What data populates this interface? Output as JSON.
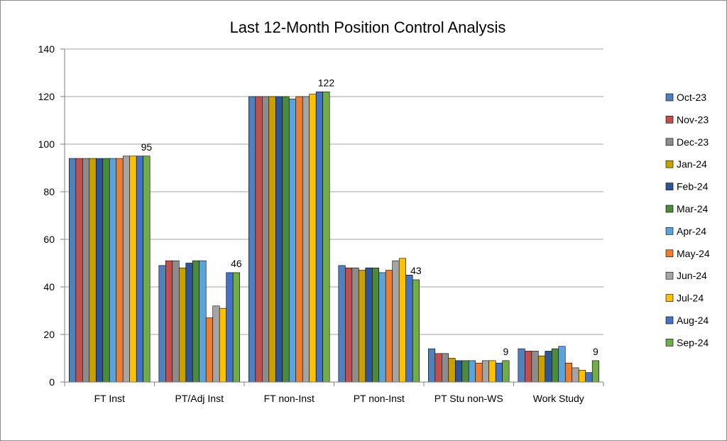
{
  "chart_data": {
    "type": "bar",
    "title": "Last 12-Month Position Control Analysis",
    "xlabel": "",
    "ylabel": "",
    "ylim": [
      0,
      140
    ],
    "yticks": [
      0,
      20,
      40,
      60,
      80,
      100,
      120,
      140
    ],
    "grid": true,
    "legend_position": "right",
    "categories": [
      "FT Inst",
      "PT/Adj Inst",
      "FT non-Inst",
      "PT non-Inst",
      "PT Stu non-WS",
      "Work Study"
    ],
    "series": [
      {
        "name": "Oct-23",
        "color": "#4f81bd",
        "values": [
          94,
          49,
          120,
          49,
          14,
          14
        ]
      },
      {
        "name": "Nov-23",
        "color": "#c0504d",
        "values": [
          94,
          51,
          120,
          48,
          12,
          13
        ]
      },
      {
        "name": "Dec-23",
        "color": "#8c8c8c",
        "values": [
          94,
          51,
          120,
          48,
          12,
          13
        ]
      },
      {
        "name": "Jan-24",
        "color": "#c9a000",
        "values": [
          94,
          48,
          120,
          47,
          10,
          11
        ]
      },
      {
        "name": "Feb-24",
        "color": "#2e5597",
        "values": [
          94,
          50,
          120,
          48,
          9,
          13
        ]
      },
      {
        "name": "Mar-24",
        "color": "#4e8a3c",
        "values": [
          94,
          51,
          120,
          48,
          9,
          14
        ]
      },
      {
        "name": "Apr-24",
        "color": "#5ba3dc",
        "values": [
          94,
          51,
          119,
          46,
          9,
          15
        ]
      },
      {
        "name": "May-24",
        "color": "#ed7d31",
        "values": [
          94,
          27,
          120,
          47,
          8,
          8
        ]
      },
      {
        "name": "Jun-24",
        "color": "#a5a5a5",
        "values": [
          95,
          32,
          120,
          51,
          9,
          6
        ]
      },
      {
        "name": "Jul-24",
        "color": "#ffc000",
        "values": [
          95,
          31,
          121,
          52,
          9,
          5
        ]
      },
      {
        "name": "Aug-24",
        "color": "#4472c4",
        "values": [
          95,
          46,
          122,
          45,
          8,
          4
        ]
      },
      {
        "name": "Sep-24",
        "color": "#70ad47",
        "values": [
          95,
          46,
          122,
          43,
          9,
          9
        ]
      }
    ],
    "data_labels": [
      {
        "category": "FT Inst",
        "series": "Sep-24",
        "text": "95"
      },
      {
        "category": "PT/Adj Inst",
        "series": "Sep-24",
        "text": "46"
      },
      {
        "category": "FT non-Inst",
        "series": "Sep-24",
        "text": "122"
      },
      {
        "category": "PT non-Inst",
        "series": "Sep-24",
        "text": "43"
      },
      {
        "category": "PT Stu non-WS",
        "series": "Sep-24",
        "text": "9"
      },
      {
        "category": "Work Study",
        "series": "Sep-24",
        "text": "9"
      }
    ]
  }
}
